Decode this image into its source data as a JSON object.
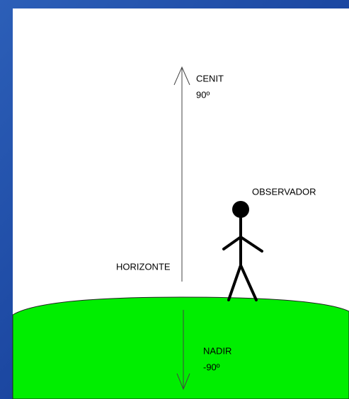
{
  "labels": {
    "zenith": "CENIT",
    "zenith_angle": "90º",
    "observer": "OBSERVADOR",
    "horizon": "HORIZONTE",
    "nadir": "NADIR",
    "nadir_angle": "-90º"
  }
}
